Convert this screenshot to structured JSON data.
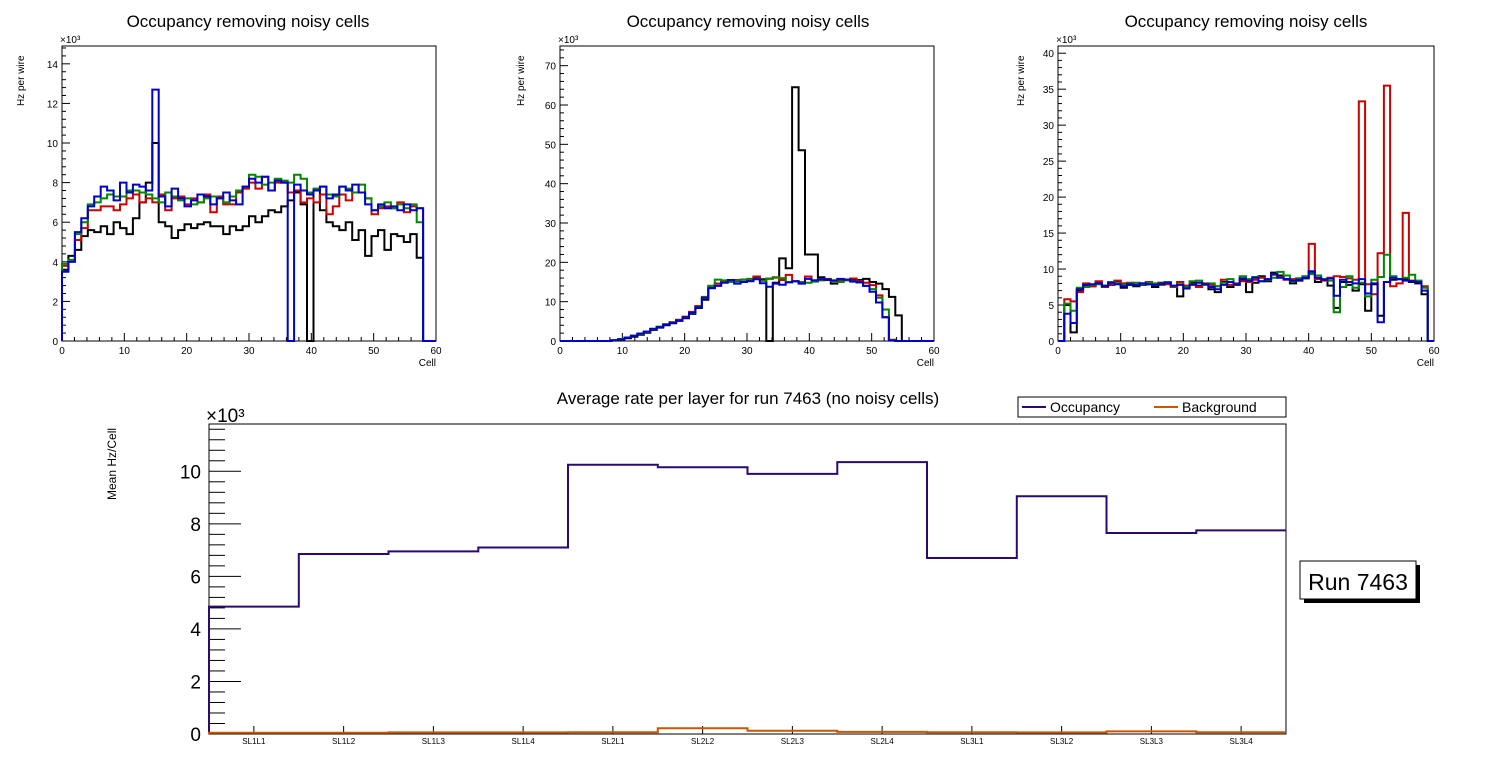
{
  "chart_data": [
    {
      "type": "histogram",
      "title": "Occupancy removing noisy cells",
      "xlabel": "Cell",
      "ylabel": "Hz per wire",
      "exponent": "×10³",
      "xlim": [
        0,
        60
      ],
      "ylim": [
        0,
        14.9
      ],
      "xticks": [
        "0",
        "10",
        "20",
        "30",
        "40",
        "50",
        "60"
      ],
      "yticks": [
        "0",
        "2",
        "4",
        "6",
        "8",
        "10",
        "12",
        "14"
      ],
      "bins": 58,
      "series": [
        {
          "name": "black",
          "color": "#000000",
          "values": [
            3.6,
            4.3,
            4.6,
            5.3,
            5.6,
            5.5,
            5.8,
            5.4,
            6.0,
            5.7,
            5.4,
            6.2,
            7.0,
            8.0,
            10.0,
            6.0,
            5.8,
            5.2,
            5.6,
            5.9,
            5.7,
            5.9,
            6.0,
            5.8,
            5.8,
            5.4,
            5.8,
            5.6,
            5.8,
            6.3,
            6.0,
            6.3,
            6.6,
            6.5,
            6.8,
            7.1,
            7.5,
            6.9,
            0.0,
            7.6,
            6.6,
            6.0,
            5.8,
            5.6,
            6.0,
            5.1,
            5.6,
            4.3,
            5.3,
            5.6,
            4.6,
            5.4,
            5.3,
            5.0,
            5.4,
            4.2,
            0.0,
            0.0
          ]
        },
        {
          "name": "red",
          "color": "#cc0000",
          "values": [
            3.8,
            4.0,
            5.1,
            5.7,
            6.6,
            6.6,
            6.8,
            6.8,
            6.6,
            6.9,
            7.2,
            7.4,
            7.0,
            7.2,
            7.0,
            7.4,
            6.6,
            7.2,
            7.3,
            6.9,
            7.2,
            7.0,
            7.4,
            6.5,
            7.3,
            6.9,
            6.9,
            7.5,
            7.7,
            8.0,
            7.7,
            8.3,
            7.6,
            8.0,
            8.0,
            7.5,
            7.6,
            7.0,
            7.2,
            7.0,
            7.4,
            6.4,
            6.8,
            7.4,
            7.1,
            7.5,
            7.5,
            7.2,
            6.4,
            6.7,
            6.8,
            6.7,
            7.0,
            6.5,
            6.8,
            6.7,
            0.0,
            0.0
          ]
        },
        {
          "name": "green",
          "color": "#008800",
          "values": [
            3.9,
            4.1,
            5.4,
            6.0,
            6.9,
            7.0,
            7.2,
            7.4,
            7.3,
            7.3,
            7.6,
            7.6,
            7.5,
            7.4,
            7.2,
            7.0,
            7.5,
            7.3,
            7.1,
            7.2,
            6.9,
            7.0,
            7.2,
            7.3,
            7.2,
            7.0,
            7.3,
            7.6,
            7.8,
            8.4,
            8.3,
            7.9,
            8.0,
            8.2,
            8.1,
            8.0,
            8.4,
            8.2,
            7.5,
            7.7,
            7.8,
            7.4,
            7.3,
            7.8,
            7.7,
            7.5,
            7.9,
            7.2,
            6.6,
            6.8,
            7.0,
            6.7,
            6.9,
            6.7,
            6.9,
            6.0,
            0.0,
            0.0
          ]
        },
        {
          "name": "blue",
          "color": "#0000cc",
          "values": [
            3.5,
            4.0,
            5.5,
            6.2,
            6.8,
            7.3,
            7.8,
            7.6,
            7.1,
            8.0,
            7.5,
            7.9,
            7.8,
            7.6,
            12.7,
            7.3,
            6.8,
            7.7,
            7.2,
            6.8,
            7.1,
            7.4,
            7.3,
            6.9,
            7.2,
            7.5,
            7.1,
            6.9,
            7.8,
            8.2,
            8.0,
            8.3,
            7.6,
            8.1,
            8.0,
            0.0,
            7.9,
            7.6,
            7.4,
            7.6,
            7.8,
            7.2,
            7.4,
            7.8,
            7.6,
            7.9,
            7.5,
            6.9,
            6.6,
            6.9,
            6.7,
            6.8,
            6.6,
            6.9,
            6.6,
            6.7,
            0.0,
            0.0
          ]
        }
      ]
    },
    {
      "type": "histogram",
      "title": "Occupancy removing noisy cells",
      "xlabel": "Cell",
      "ylabel": "Hz per wire",
      "exponent": "×10³",
      "xlim": [
        0,
        60
      ],
      "ylim": [
        0,
        75
      ],
      "xticks": [
        "0",
        "10",
        "20",
        "30",
        "40",
        "50",
        "60"
      ],
      "yticks": [
        "0",
        "10",
        "20",
        "30",
        "40",
        "50",
        "60",
        "70"
      ],
      "bins": 58,
      "series": [
        {
          "name": "black",
          "color": "#000000",
          "values": [
            0,
            0,
            0,
            0,
            0,
            0,
            0,
            0,
            0.1,
            0.3,
            0.7,
            1.1,
            1.6,
            2.1,
            2.8,
            3.4,
            4.0,
            4.5,
            5.1,
            5.8,
            6.9,
            8.4,
            10.5,
            13.5,
            14.6,
            15.0,
            15.4,
            15.2,
            15.6,
            15.3,
            16.0,
            15.7,
            0.0,
            14.8,
            21.0,
            18.5,
            64.5,
            48.5,
            22.0,
            22.0,
            16.2,
            15.5,
            14.6,
            15.3,
            15.6,
            15.4,
            15.5,
            15.8,
            15.0,
            14.6,
            13.2,
            11.2,
            6.5,
            0.0,
            0,
            0,
            0,
            0
          ]
        },
        {
          "name": "red",
          "color": "#cc0000",
          "values": [
            0,
            0,
            0,
            0,
            0,
            0,
            0,
            0,
            0.2,
            0.4,
            0.9,
            1.4,
            1.9,
            2.4,
            3.0,
            3.6,
            4.3,
            4.8,
            5.4,
            6.2,
            7.4,
            8.9,
            11.0,
            14.0,
            14.6,
            15.2,
            15.0,
            15.5,
            15.6,
            15.8,
            16.4,
            15.3,
            15.8,
            16.2,
            15.5,
            16.8,
            15.2,
            15.0,
            16.4,
            15.4,
            15.7,
            15.8,
            15.2,
            15.4,
            15.6,
            15.9,
            15.2,
            14.8,
            14.2,
            11.6,
            6.1,
            0.3,
            0,
            0,
            0,
            0,
            0,
            0
          ]
        },
        {
          "name": "green",
          "color": "#008800",
          "values": [
            0,
            0,
            0,
            0,
            0,
            0,
            0,
            0,
            0.2,
            0.5,
            0.9,
            1.4,
            1.8,
            2.3,
            3.0,
            3.6,
            4.2,
            4.7,
            5.3,
            6.0,
            7.1,
            8.7,
            11.2,
            14.0,
            15.6,
            15.4,
            15.0,
            15.3,
            15.6,
            15.7,
            15.8,
            15.3,
            15.9,
            16.1,
            16.0,
            15.0,
            15.2,
            14.9,
            14.8,
            15.1,
            15.4,
            15.6,
            15.2,
            15.0,
            15.4,
            15.2,
            14.9,
            14.0,
            13.2,
            11.0,
            8.0,
            0.2,
            0,
            0,
            0,
            0,
            0,
            0
          ]
        },
        {
          "name": "blue",
          "color": "#0000cc",
          "values": [
            0,
            0,
            0,
            0,
            0,
            0,
            0,
            0,
            0.2,
            0.4,
            0.9,
            1.3,
            1.9,
            2.4,
            3.1,
            3.5,
            4.1,
            4.6,
            5.2,
            6.0,
            7.2,
            8.6,
            11.0,
            13.4,
            14.0,
            14.8,
            15.5,
            14.6,
            15.0,
            15.2,
            15.7,
            14.7,
            13.8,
            14.6,
            14.3,
            14.9,
            15.2,
            14.6,
            15.8,
            15.4,
            15.7,
            15.6,
            15.4,
            15.8,
            15.6,
            15.1,
            14.9,
            14.0,
            12.5,
            9.8,
            6.0,
            0.1,
            0,
            0,
            0,
            0,
            0,
            0
          ]
        }
      ]
    },
    {
      "type": "histogram",
      "title": "Occupancy removing noisy cells",
      "xlabel": "Cell",
      "ylabel": "Hz per wire",
      "exponent": "×10³",
      "xlim": [
        0,
        60
      ],
      "ylim": [
        0,
        41
      ],
      "xticks": [
        "0",
        "10",
        "20",
        "30",
        "40",
        "50",
        "60"
      ],
      "yticks": [
        "0",
        "5",
        "10",
        "15",
        "20",
        "25",
        "30",
        "35",
        "40"
      ],
      "bins": 60,
      "series": [
        {
          "name": "black",
          "color": "#000000",
          "values": [
            0.0,
            5.0,
            1.2,
            7.0,
            7.6,
            7.6,
            8.1,
            7.7,
            7.8,
            8.3,
            7.4,
            7.8,
            7.6,
            7.8,
            7.9,
            7.5,
            8.1,
            8.0,
            7.6,
            6.2,
            7.6,
            8.1,
            7.7,
            7.9,
            7.2,
            6.8,
            8.2,
            7.5,
            7.8,
            8.5,
            6.8,
            8.1,
            9.0,
            8.3,
            9.5,
            9.1,
            8.6,
            8.0,
            8.4,
            8.7,
            9.4,
            8.2,
            8.6,
            7.7,
            4.6,
            8.2,
            7.8,
            7.0,
            7.9,
            4.2,
            7.9,
            3.5,
            8.2,
            8.5,
            8.6,
            8.6,
            8.2,
            8.0,
            6.5,
            0.0
          ]
        },
        {
          "name": "red",
          "color": "#cc0000",
          "values": [
            0.0,
            5.8,
            5.5,
            6.8,
            8.0,
            7.6,
            8.3,
            7.5,
            7.9,
            8.4,
            8.0,
            8.1,
            7.8,
            8.0,
            8.2,
            7.8,
            8.0,
            7.9,
            7.5,
            8.2,
            7.7,
            7.9,
            7.5,
            8.0,
            7.8,
            7.6,
            8.5,
            7.8,
            8.0,
            8.3,
            8.2,
            8.5,
            8.8,
            8.6,
            9.2,
            8.9,
            8.5,
            8.6,
            8.7,
            8.9,
            13.5,
            8.6,
            8.4,
            8.8,
            9.0,
            8.9,
            8.7,
            8.5,
            33.3,
            7.9,
            6.5,
            12.2,
            35.5,
            7.6,
            8.0,
            17.8,
            8.4,
            8.3,
            7.6,
            0.0
          ]
        },
        {
          "name": "green",
          "color": "#008800",
          "values": [
            0.0,
            5.2,
            4.2,
            7.4,
            7.5,
            7.8,
            7.9,
            7.6,
            8.2,
            8.0,
            7.8,
            8.0,
            8.1,
            7.9,
            8.1,
            8.0,
            7.8,
            8.2,
            7.6,
            7.9,
            7.5,
            8.3,
            8.4,
            7.8,
            8.0,
            7.6,
            8.1,
            8.6,
            7.9,
            9.0,
            8.6,
            8.9,
            8.3,
            8.5,
            8.8,
            9.6,
            9.1,
            8.3,
            8.7,
            9.0,
            9.3,
            9.1,
            8.6,
            8.4,
            4.0,
            7.5,
            9.0,
            7.4,
            8.1,
            6.2,
            8.5,
            8.9,
            12.0,
            9.0,
            8.6,
            8.8,
            9.2,
            8.4,
            7.4,
            0.0
          ]
        },
        {
          "name": "blue",
          "color": "#0000cc",
          "values": [
            0.0,
            3.8,
            2.5,
            7.2,
            7.8,
            7.9,
            8.0,
            7.6,
            8.1,
            7.9,
            7.6,
            7.9,
            7.8,
            8.0,
            7.9,
            7.8,
            7.9,
            8.1,
            7.7,
            7.8,
            7.3,
            7.8,
            8.1,
            7.9,
            7.5,
            7.2,
            7.8,
            8.2,
            7.9,
            8.7,
            8.4,
            8.8,
            8.3,
            8.6,
            9.3,
            8.8,
            8.6,
            8.4,
            8.5,
            8.8,
            9.7,
            8.8,
            8.5,
            8.7,
            6.3,
            8.5,
            8.2,
            8.0,
            8.6,
            6.6,
            8.0,
            2.6,
            8.2,
            8.8,
            8.6,
            8.4,
            8.3,
            8.2,
            7.0,
            0.0
          ]
        }
      ]
    },
    {
      "type": "histogram",
      "title": "Average rate per layer for run 7463 (no noisy cells)",
      "xlabel": "",
      "ylabel": "Mean Hz/Cell",
      "exponent": "×10³",
      "ylim": [
        0,
        11.8
      ],
      "yticks": [
        "0",
        "2",
        "4",
        "6",
        "8",
        "10"
      ],
      "categories": [
        "SL1L1",
        "SL1L2",
        "SL1L3",
        "SL1L4",
        "SL2L1",
        "SL2L2",
        "SL2L3",
        "SL2L4",
        "SL3L1",
        "SL3L2",
        "SL3L3",
        "SL3L4"
      ],
      "series": [
        {
          "name": "Occupancy",
          "color": "#2a0a6e",
          "values": [
            4.85,
            6.85,
            6.95,
            7.1,
            10.25,
            10.15,
            9.9,
            10.35,
            6.7,
            9.05,
            7.65,
            7.75
          ]
        },
        {
          "name": "Background",
          "color": "#cc5500",
          "values": [
            0.05,
            0.05,
            0.06,
            0.06,
            0.07,
            0.22,
            0.12,
            0.08,
            0.07,
            0.06,
            0.1,
            0.07
          ]
        }
      ],
      "legend": [
        "Occupancy",
        "Background"
      ],
      "legend_position": "top-right",
      "run_label": "Run 7463"
    }
  ]
}
